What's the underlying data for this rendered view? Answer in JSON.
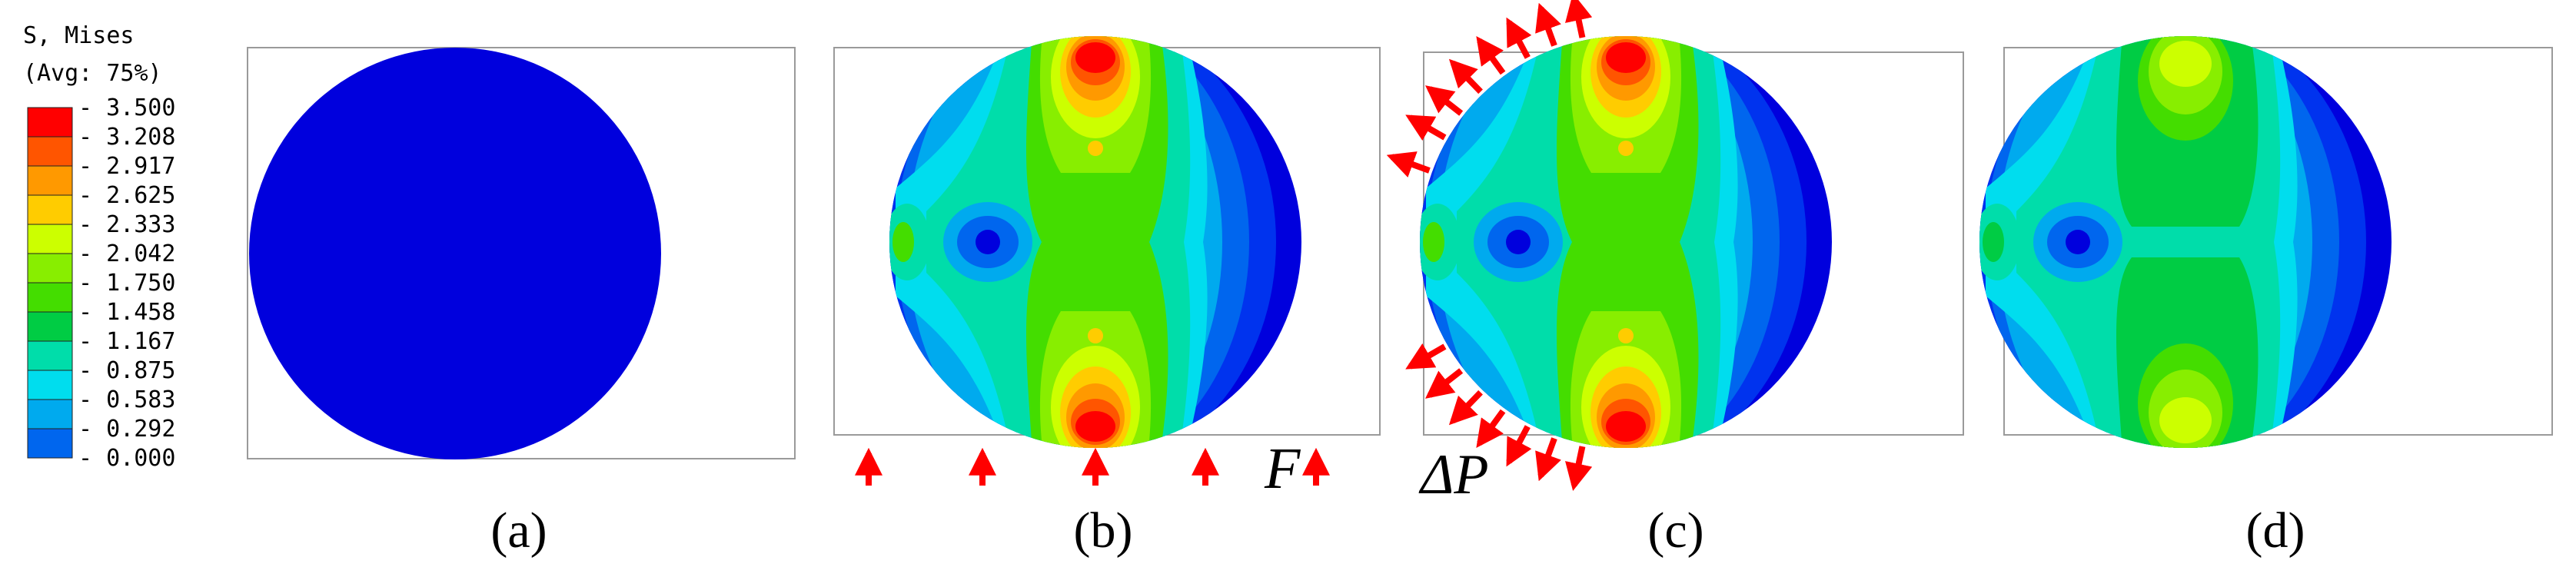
{
  "legend": {
    "title_line1": "S, Mises",
    "title_line2": "(Avg: 75%)",
    "levels": [
      {
        "value": "3.500",
        "color": "#ff0000"
      },
      {
        "value": "3.208",
        "color": "#ff5500"
      },
      {
        "value": "2.917",
        "color": "#ff9900"
      },
      {
        "value": "2.625",
        "color": "#ffcc00"
      },
      {
        "value": "2.333",
        "color": "#ccff00"
      },
      {
        "value": "2.042",
        "color": "#88ee00"
      },
      {
        "value": "1.750",
        "color": "#44dd00"
      },
      {
        "value": "1.458",
        "color": "#00cc44"
      },
      {
        "value": "1.167",
        "color": "#00ddaa"
      },
      {
        "value": "0.875",
        "color": "#00ddee"
      },
      {
        "value": "0.583",
        "color": "#00aaee"
      },
      {
        "value": "0.292",
        "color": "#0066ee"
      },
      {
        "value": "0.000",
        "color": "#0000dd"
      }
    ]
  },
  "panels": {
    "a": {
      "label": "(a)"
    },
    "b": {
      "label": "(b)",
      "load_label": "F"
    },
    "c": {
      "label": "(c)",
      "load_label": "ΔP"
    },
    "d": {
      "label": "(d)"
    }
  },
  "colors": {
    "load_arrow": "#ff0000",
    "frame": "#9a9a9a",
    "base_blue": "#0000dd"
  }
}
